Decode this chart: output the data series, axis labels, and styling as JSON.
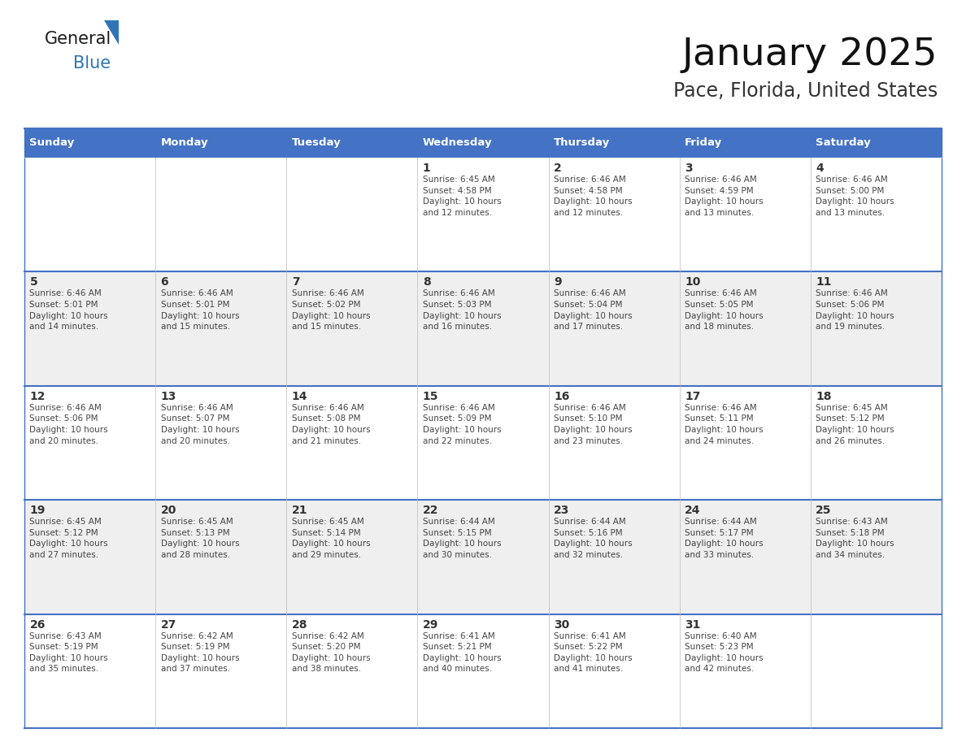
{
  "title": "January 2025",
  "subtitle": "Pace, Florida, United States",
  "header_bg_color": "#4472C4",
  "header_text_color": "#FFFFFF",
  "cell_bg_alt": "#EFEFEF",
  "cell_bg_normal": "#FFFFFF",
  "day_number_color": "#333333",
  "cell_text_color": "#444444",
  "grid_color": "#4472C4",
  "grid_color_light": "#CCCCCC",
  "days_of_week": [
    "Sunday",
    "Monday",
    "Tuesday",
    "Wednesday",
    "Thursday",
    "Friday",
    "Saturday"
  ],
  "weeks": [
    [
      {
        "day": "",
        "info": ""
      },
      {
        "day": "",
        "info": ""
      },
      {
        "day": "",
        "info": ""
      },
      {
        "day": "1",
        "info": "Sunrise: 6:45 AM\nSunset: 4:58 PM\nDaylight: 10 hours\nand 12 minutes."
      },
      {
        "day": "2",
        "info": "Sunrise: 6:46 AM\nSunset: 4:58 PM\nDaylight: 10 hours\nand 12 minutes."
      },
      {
        "day": "3",
        "info": "Sunrise: 6:46 AM\nSunset: 4:59 PM\nDaylight: 10 hours\nand 13 minutes."
      },
      {
        "day": "4",
        "info": "Sunrise: 6:46 AM\nSunset: 5:00 PM\nDaylight: 10 hours\nand 13 minutes."
      }
    ],
    [
      {
        "day": "5",
        "info": "Sunrise: 6:46 AM\nSunset: 5:01 PM\nDaylight: 10 hours\nand 14 minutes."
      },
      {
        "day": "6",
        "info": "Sunrise: 6:46 AM\nSunset: 5:01 PM\nDaylight: 10 hours\nand 15 minutes."
      },
      {
        "day": "7",
        "info": "Sunrise: 6:46 AM\nSunset: 5:02 PM\nDaylight: 10 hours\nand 15 minutes."
      },
      {
        "day": "8",
        "info": "Sunrise: 6:46 AM\nSunset: 5:03 PM\nDaylight: 10 hours\nand 16 minutes."
      },
      {
        "day": "9",
        "info": "Sunrise: 6:46 AM\nSunset: 5:04 PM\nDaylight: 10 hours\nand 17 minutes."
      },
      {
        "day": "10",
        "info": "Sunrise: 6:46 AM\nSunset: 5:05 PM\nDaylight: 10 hours\nand 18 minutes."
      },
      {
        "day": "11",
        "info": "Sunrise: 6:46 AM\nSunset: 5:06 PM\nDaylight: 10 hours\nand 19 minutes."
      }
    ],
    [
      {
        "day": "12",
        "info": "Sunrise: 6:46 AM\nSunset: 5:06 PM\nDaylight: 10 hours\nand 20 minutes."
      },
      {
        "day": "13",
        "info": "Sunrise: 6:46 AM\nSunset: 5:07 PM\nDaylight: 10 hours\nand 20 minutes."
      },
      {
        "day": "14",
        "info": "Sunrise: 6:46 AM\nSunset: 5:08 PM\nDaylight: 10 hours\nand 21 minutes."
      },
      {
        "day": "15",
        "info": "Sunrise: 6:46 AM\nSunset: 5:09 PM\nDaylight: 10 hours\nand 22 minutes."
      },
      {
        "day": "16",
        "info": "Sunrise: 6:46 AM\nSunset: 5:10 PM\nDaylight: 10 hours\nand 23 minutes."
      },
      {
        "day": "17",
        "info": "Sunrise: 6:46 AM\nSunset: 5:11 PM\nDaylight: 10 hours\nand 24 minutes."
      },
      {
        "day": "18",
        "info": "Sunrise: 6:45 AM\nSunset: 5:12 PM\nDaylight: 10 hours\nand 26 minutes."
      }
    ],
    [
      {
        "day": "19",
        "info": "Sunrise: 6:45 AM\nSunset: 5:12 PM\nDaylight: 10 hours\nand 27 minutes."
      },
      {
        "day": "20",
        "info": "Sunrise: 6:45 AM\nSunset: 5:13 PM\nDaylight: 10 hours\nand 28 minutes."
      },
      {
        "day": "21",
        "info": "Sunrise: 6:45 AM\nSunset: 5:14 PM\nDaylight: 10 hours\nand 29 minutes."
      },
      {
        "day": "22",
        "info": "Sunrise: 6:44 AM\nSunset: 5:15 PM\nDaylight: 10 hours\nand 30 minutes."
      },
      {
        "day": "23",
        "info": "Sunrise: 6:44 AM\nSunset: 5:16 PM\nDaylight: 10 hours\nand 32 minutes."
      },
      {
        "day": "24",
        "info": "Sunrise: 6:44 AM\nSunset: 5:17 PM\nDaylight: 10 hours\nand 33 minutes."
      },
      {
        "day": "25",
        "info": "Sunrise: 6:43 AM\nSunset: 5:18 PM\nDaylight: 10 hours\nand 34 minutes."
      }
    ],
    [
      {
        "day": "26",
        "info": "Sunrise: 6:43 AM\nSunset: 5:19 PM\nDaylight: 10 hours\nand 35 minutes."
      },
      {
        "day": "27",
        "info": "Sunrise: 6:42 AM\nSunset: 5:19 PM\nDaylight: 10 hours\nand 37 minutes."
      },
      {
        "day": "28",
        "info": "Sunrise: 6:42 AM\nSunset: 5:20 PM\nDaylight: 10 hours\nand 38 minutes."
      },
      {
        "day": "29",
        "info": "Sunrise: 6:41 AM\nSunset: 5:21 PM\nDaylight: 10 hours\nand 40 minutes."
      },
      {
        "day": "30",
        "info": "Sunrise: 6:41 AM\nSunset: 5:22 PM\nDaylight: 10 hours\nand 41 minutes."
      },
      {
        "day": "31",
        "info": "Sunrise: 6:40 AM\nSunset: 5:23 PM\nDaylight: 10 hours\nand 42 minutes."
      },
      {
        "day": "",
        "info": ""
      }
    ]
  ],
  "logo_general_color": "#1a1a1a",
  "logo_blue_color": "#2E75B6",
  "fig_width": 11.88,
  "fig_height": 9.18,
  "dpi": 100
}
